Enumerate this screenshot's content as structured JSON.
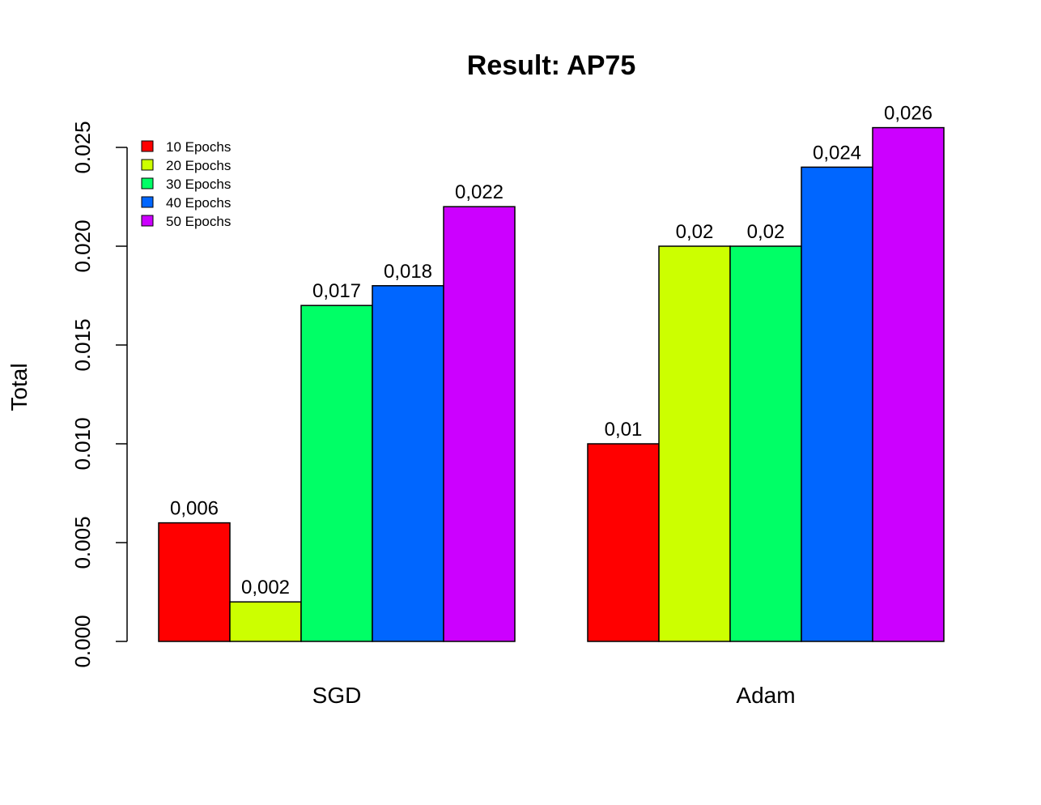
{
  "chart_data": {
    "type": "bar",
    "title": "Result: AP75",
    "xlabel": "",
    "ylabel": "Total",
    "ylim": [
      0,
      0.025
    ],
    "yticks": [
      "0.000",
      "0.005",
      "0.010",
      "0.015",
      "0.020",
      "0.025"
    ],
    "categories": [
      "SGD",
      "Adam"
    ],
    "series": [
      {
        "name": "10 Epochs",
        "color": "#ff0000",
        "values": [
          0.006,
          0.01
        ],
        "labels": [
          "0,006",
          "0,01"
        ]
      },
      {
        "name": "20 Epochs",
        "color": "#ccff00",
        "values": [
          0.002,
          0.02
        ],
        "labels": [
          "0,002",
          "0,02"
        ]
      },
      {
        "name": "30 Epochs",
        "color": "#00ff66",
        "values": [
          0.017,
          0.02
        ],
        "labels": [
          "0,017",
          "0,02"
        ]
      },
      {
        "name": "40 Epochs",
        "color": "#0066ff",
        "values": [
          0.018,
          0.024
        ],
        "labels": [
          "0,018",
          "0,024"
        ]
      },
      {
        "name": "50 Epochs",
        "color": "#cc00ff",
        "values": [
          0.022,
          0.026
        ],
        "labels": [
          "0,022",
          "0,026"
        ]
      }
    ],
    "legend_position": "top-left",
    "grid": false
  }
}
